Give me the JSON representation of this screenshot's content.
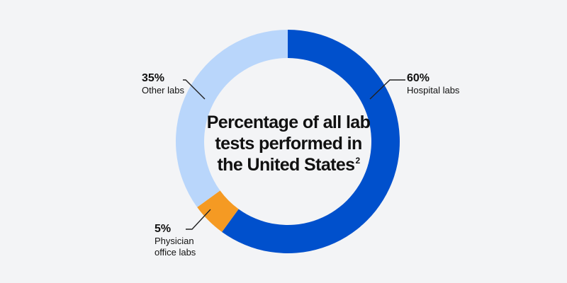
{
  "center_text": {
    "lines": [
      "Percentage of all lab",
      "tests performed in",
      "the United States"
    ],
    "superscript": "2"
  },
  "colors": {
    "background": "#f3f4f6",
    "hospital": "#0050cc",
    "physician": "#f59a23",
    "other": "#b9d6fb",
    "text": "#111111",
    "leader": "#222222"
  },
  "chart_data": {
    "type": "pie",
    "variant": "donut",
    "title": "Percentage of all lab tests performed in the United States²",
    "unit": "%",
    "slices": [
      {
        "name": "Hospital labs",
        "value": 60,
        "label": "60%",
        "color": "#0050cc"
      },
      {
        "name": "Physician office labs",
        "value": 5,
        "label": "5%",
        "color": "#f59a23"
      },
      {
        "name": "Other labs",
        "value": 35,
        "label": "35%",
        "color": "#b9d6fb"
      }
    ],
    "start_angle": "12 o'clock",
    "direction": "clockwise",
    "legend": "none (direct labels with leader lines)"
  }
}
